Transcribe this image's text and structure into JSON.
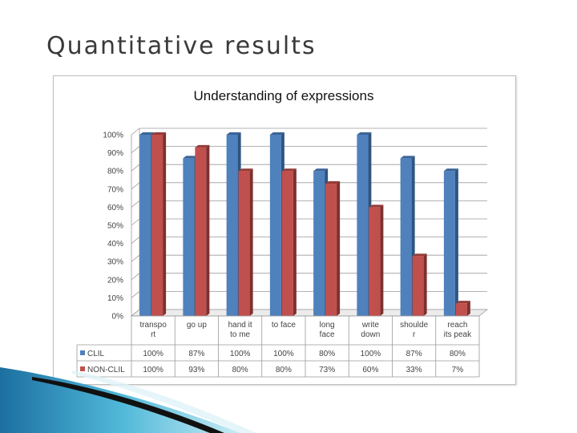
{
  "slide": {
    "title": "Quantitative results"
  },
  "colors": {
    "clil": "#4f81bd",
    "non_clil": "#c0504d"
  },
  "chart_data": {
    "type": "bar",
    "title": "Understanding of expressions",
    "categories": [
      [
        "transpo",
        "rt"
      ],
      [
        "go up"
      ],
      [
        "hand it",
        "to me"
      ],
      [
        "to face"
      ],
      [
        "long",
        "face"
      ],
      [
        "write",
        "down"
      ],
      [
        "shoulde",
        "r"
      ],
      [
        "reach",
        "its peak"
      ]
    ],
    "series": [
      {
        "name": "CLIL",
        "values": [
          100,
          87,
          100,
          100,
          80,
          100,
          87,
          80
        ],
        "labels": [
          "100%",
          "87%",
          "100%",
          "100%",
          "80%",
          "100%",
          "87%",
          "80%"
        ]
      },
      {
        "name": "NON-CLIL",
        "values": [
          100,
          93,
          80,
          80,
          73,
          60,
          33,
          7
        ],
        "labels": [
          "100%",
          "93%",
          "80%",
          "80%",
          "73%",
          "60%",
          "33%",
          "7%"
        ]
      }
    ],
    "ylim": [
      0,
      100
    ],
    "yticks": [
      "0%",
      "10%",
      "20%",
      "30%",
      "40%",
      "50%",
      "60%",
      "70%",
      "80%",
      "90%",
      "100%"
    ],
    "grid": true,
    "legend": "data-table"
  }
}
